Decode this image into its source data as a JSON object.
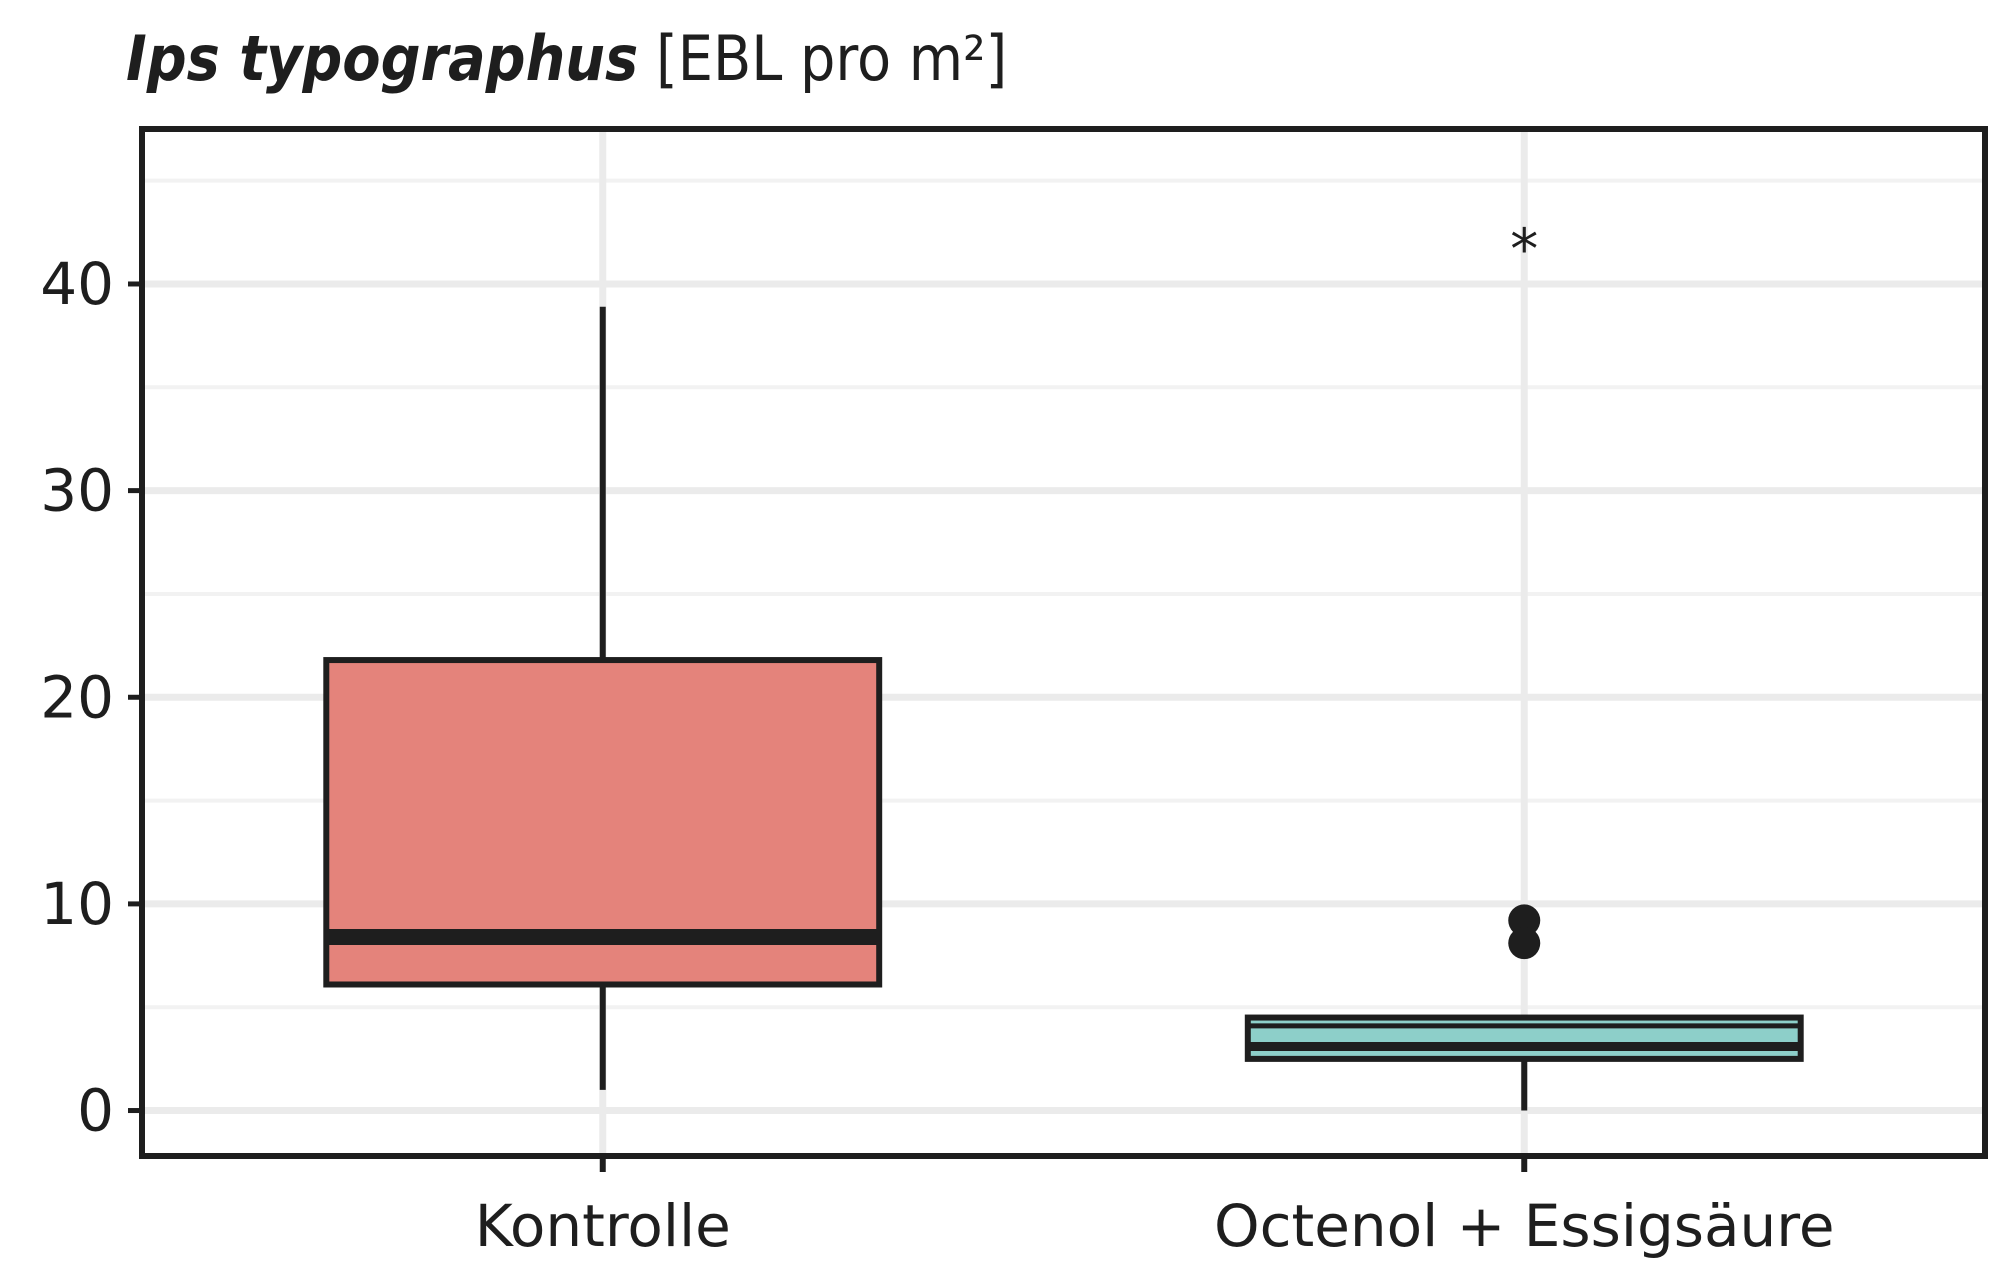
{
  "chart_data": {
    "type": "box",
    "title_species": "Ips typographus",
    "title_unit": "[EBL pro m²]",
    "xlabel": "",
    "ylabel": "",
    "ylim": [
      -2.2,
      47.5
    ],
    "yticks": [
      0,
      10,
      20,
      30,
      40
    ],
    "ytick_labels": [
      "0",
      "10",
      "20",
      "30",
      "40"
    ],
    "grid": true,
    "legend": "none",
    "categories": [
      "Kontrolle",
      "Octenol + Essigsäure"
    ],
    "boxes": [
      {
        "category": "Kontrolle",
        "whisker_low": 1.0,
        "q1": 6.1,
        "median": 8.4,
        "q3": 21.8,
        "whisker_high": 38.9,
        "outliers": [],
        "annotation": "",
        "color": "#e4837b"
      },
      {
        "category": "Octenol + Essigsäure",
        "whisker_low": 0.0,
        "q1": 2.5,
        "median": 3.1,
        "q3": 4.5,
        "whisker_high": 4.5,
        "inner_line": 4.1,
        "outliers": [
          9.2,
          8.1
        ],
        "annotation": "*",
        "color": "#8dcfc9"
      }
    ],
    "colors": {
      "frame": "#1e1e1e",
      "grid_major": "#ebebeb",
      "grid_minor": "#f2f2f2"
    }
  }
}
